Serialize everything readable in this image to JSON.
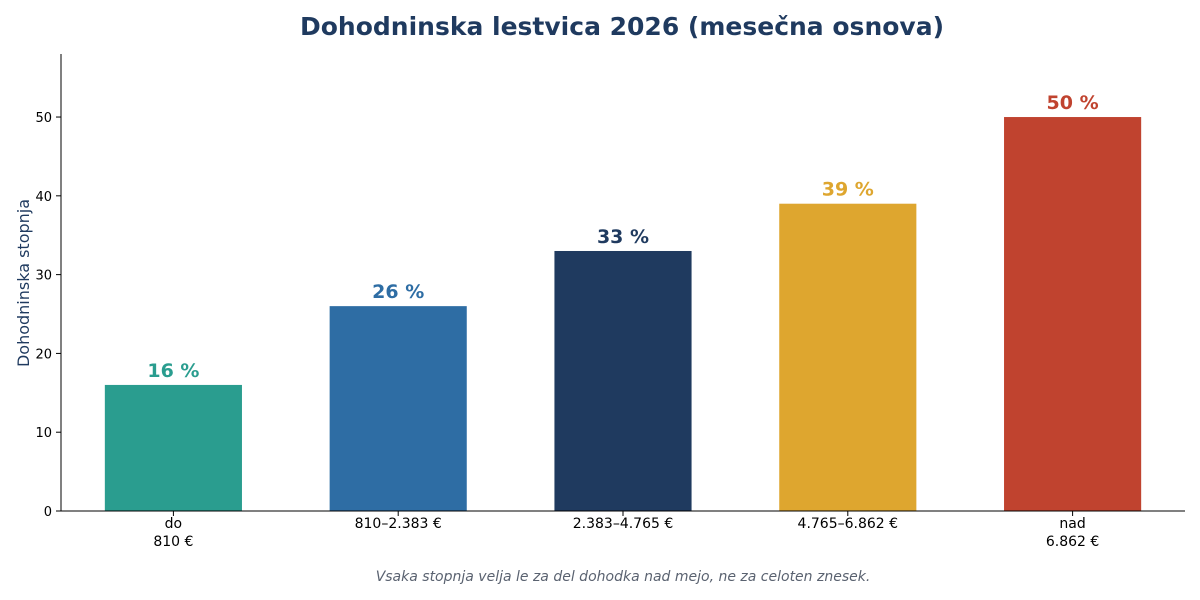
{
  "chart_data": {
    "type": "bar",
    "title": "Dohodninska lestvica 2026 (mesečna osnova)",
    "xlabel": "",
    "ylabel": "Dohodninska stopnja",
    "ylim": [
      0,
      58
    ],
    "yticks": [
      0,
      10,
      20,
      30,
      40,
      50
    ],
    "grid": false,
    "categories": [
      [
        "do",
        "810 €"
      ],
      [
        "810–2.383 €"
      ],
      [
        "2.383–4.765 €"
      ],
      [
        "4.765–6.862 €"
      ],
      [
        "nad",
        "6.862 €"
      ]
    ],
    "values": [
      16,
      26,
      33,
      39,
      50
    ],
    "data_labels": [
      "16 %",
      "26 %",
      "33 %",
      "39 %",
      "50 %"
    ],
    "colors": [
      "#2a9d8f",
      "#2e6da4",
      "#1f3a5f",
      "#dea62f",
      "#c0432f"
    ],
    "footnote": "Vsaka stopnja velja le za del dohodka nad mejo, ne za celoten znesek."
  }
}
